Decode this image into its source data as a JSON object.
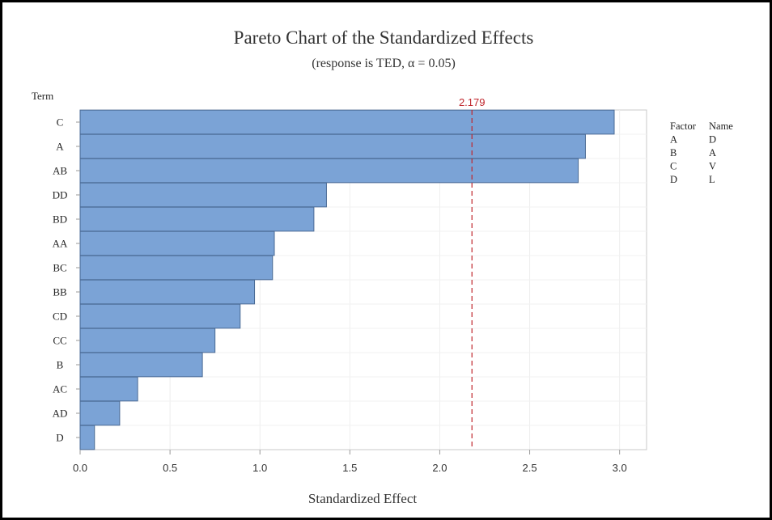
{
  "chart_data": {
    "type": "bar",
    "orientation": "horizontal",
    "title": "Pareto Chart of the Standardized Effects",
    "subtitle": "(response is TED, α = 0.05)",
    "xlabel": "Standardized Effect",
    "ylabel": "Term",
    "categories": [
      "C",
      "A",
      "AB",
      "DD",
      "BD",
      "AA",
      "BC",
      "BB",
      "CD",
      "CC",
      "B",
      "AC",
      "AD",
      "D"
    ],
    "values": [
      2.97,
      2.81,
      2.77,
      1.37,
      1.3,
      1.08,
      1.07,
      0.97,
      0.89,
      0.75,
      0.68,
      0.32,
      0.22,
      0.08
    ],
    "xlim": [
      0,
      3.15
    ],
    "xticks": [
      "0.0",
      "0.5",
      "1.0",
      "1.5",
      "2.0",
      "2.5",
      "3.0"
    ],
    "xtick_values": [
      0,
      0.5,
      1.0,
      1.5,
      2.0,
      2.5,
      3.0
    ],
    "reference_line": {
      "value": 2.179,
      "label": "2.179",
      "color": "#c0272d",
      "style": "dashed"
    },
    "bar_color": "#7ba3d6",
    "bar_edge_color": "#4a6a94",
    "grid": true,
    "legend": {
      "placement": "right",
      "headers": [
        "Factor",
        "Name"
      ],
      "rows": [
        [
          "A",
          "D"
        ],
        [
          "B",
          "A"
        ],
        [
          "C",
          "V"
        ],
        [
          "D",
          "L"
        ]
      ]
    }
  }
}
